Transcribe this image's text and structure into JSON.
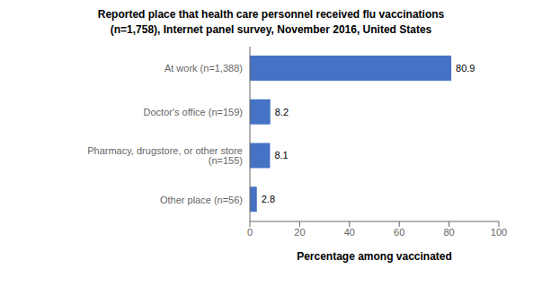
{
  "chart_data": {
    "type": "bar",
    "title": "Reported place that health care personnel received flu vaccinations",
    "subtitle": "(n=1,758), Internet panel survey, November 2016, United States",
    "categories": [
      "Other place (n=56)",
      "Pharmacy, drugstore, or other store (n=155)",
      "Doctor's office (n=159)",
      "At work (n=1,388)"
    ],
    "values": [
      2.8,
      8.1,
      8.2,
      80.9
    ],
    "color": "#4472C4",
    "xlabel": "Percentage among vaccinated",
    "xlim": [
      0,
      100
    ],
    "xticks": [
      0,
      20,
      40,
      60,
      80,
      100
    ],
    "orientation": "horizontal",
    "data_labels": true,
    "grid": false
  }
}
